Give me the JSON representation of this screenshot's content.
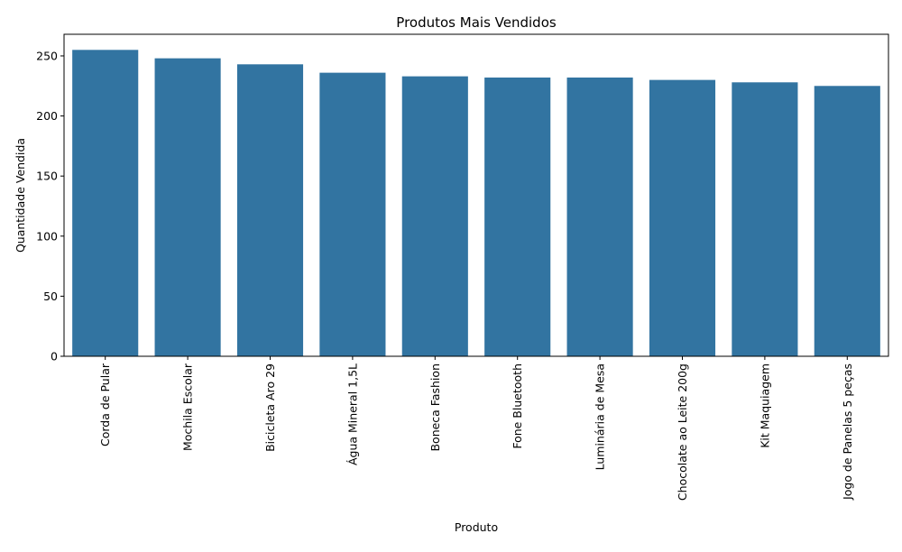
{
  "chart_data": {
    "type": "bar",
    "title": "Produtos Mais Vendidos",
    "xlabel": "Produto",
    "ylabel": "Quantidade Vendida",
    "categories": [
      "Corda de Pular",
      "Mochila Escolar",
      "Bicicleta Aro 29",
      "Água Mineral 1,5L",
      "Boneca Fashion",
      "Fone Bluetooth",
      "Luminária de Mesa",
      "Chocolate ao Leite 200g",
      "Kit Maquiagem",
      "Jogo de Panelas 5 peças"
    ],
    "values": [
      255,
      248,
      243,
      236,
      233,
      232,
      232,
      230,
      228,
      225
    ],
    "ylim": [
      0,
      268
    ],
    "yticks": [
      0,
      50,
      100,
      150,
      200,
      250
    ],
    "bar_color": "#3274a1",
    "grid": false,
    "legend": false
  }
}
